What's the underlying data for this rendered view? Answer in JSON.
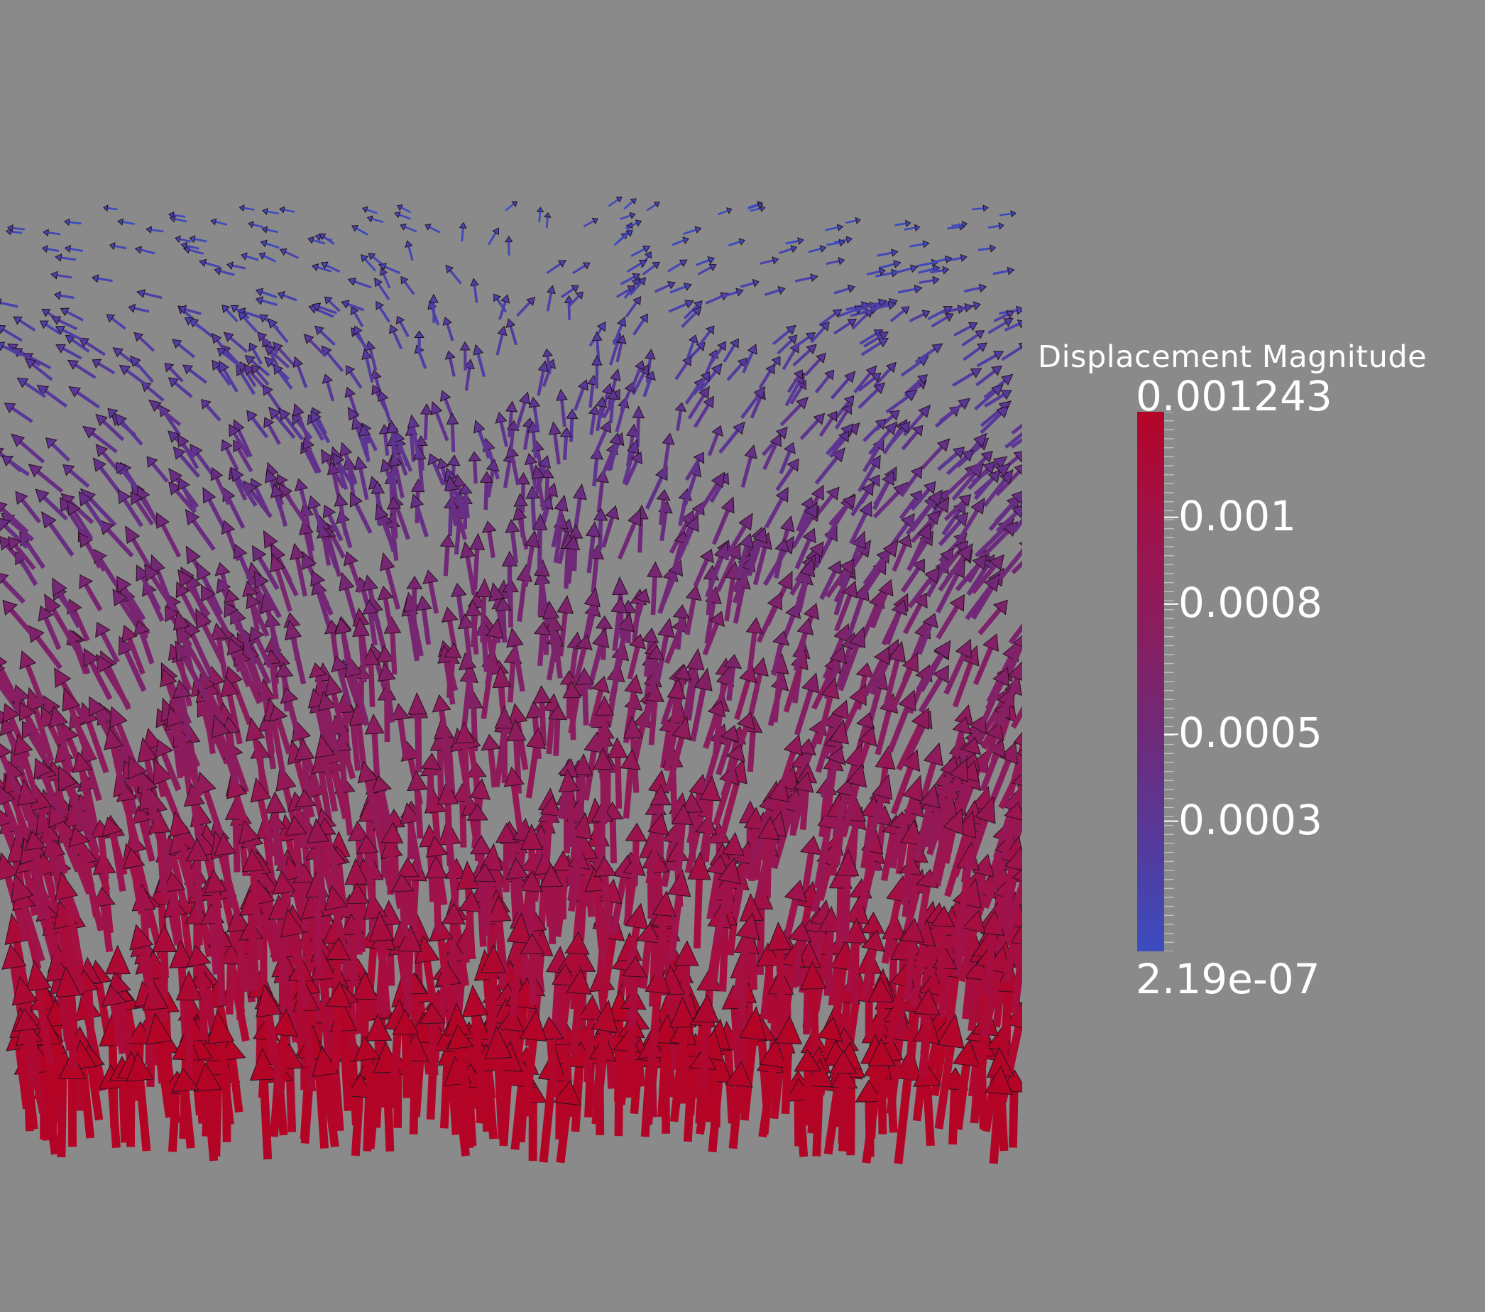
{
  "legend": {
    "title": "Displacement Magnitude",
    "max_label": "0.001243",
    "min_label": "2.19e-07",
    "range": [
      2.19e-07,
      0.001243
    ],
    "ticks": [
      {
        "value": 0.001,
        "label": "0.001"
      },
      {
        "value": 0.0008,
        "label": "0.0008"
      },
      {
        "value": 0.0005,
        "label": "0.0005"
      },
      {
        "value": 0.0003,
        "label": "0.0003"
      }
    ],
    "colormap": [
      "#3b4cc0",
      "#553a9c",
      "#6e2a7a",
      "#8a1d5e",
      "#a0124a",
      "#b40426"
    ]
  },
  "field": {
    "type": "vector-glyphs",
    "glyph": "arrow",
    "direction": "upward, diverging from center at top",
    "magnitude_trend": "increases from top to bottom"
  }
}
